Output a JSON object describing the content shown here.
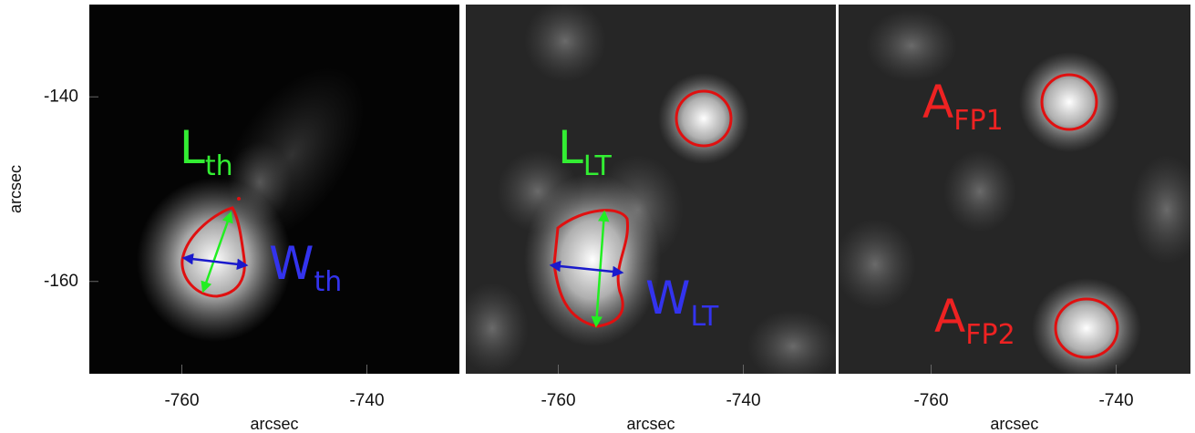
{
  "chart_data": [
    {
      "type": "image",
      "xlabel": "arcsec",
      "ylabel": "arcsec",
      "xlim": [
        -770,
        -730
      ],
      "ylim": [
        -170,
        -130
      ],
      "xticks": [
        -760,
        -740
      ],
      "yticks": [
        -140,
        -160
      ],
      "annotations": [
        {
          "text": "L",
          "sub": "th"
        },
        {
          "text": "W",
          "sub": "th"
        }
      ]
    },
    {
      "type": "image",
      "xlabel": "arcsec",
      "xlim": [
        -770,
        -730
      ],
      "ylim": [
        -170,
        -130
      ],
      "xticks": [
        -760,
        -740
      ],
      "annotations": [
        {
          "text": "L",
          "sub": "LT"
        },
        {
          "text": "W",
          "sub": "LT"
        }
      ]
    },
    {
      "type": "image",
      "xlabel": "arcsec",
      "xlim": [
        -770,
        -732
      ],
      "ylim": [
        -170,
        -130
      ],
      "xticks": [
        -760,
        -740
      ],
      "annotations": [
        {
          "text": "A",
          "sub": "FP1"
        },
        {
          "text": "A",
          "sub": "FP2"
        }
      ]
    }
  ]
}
